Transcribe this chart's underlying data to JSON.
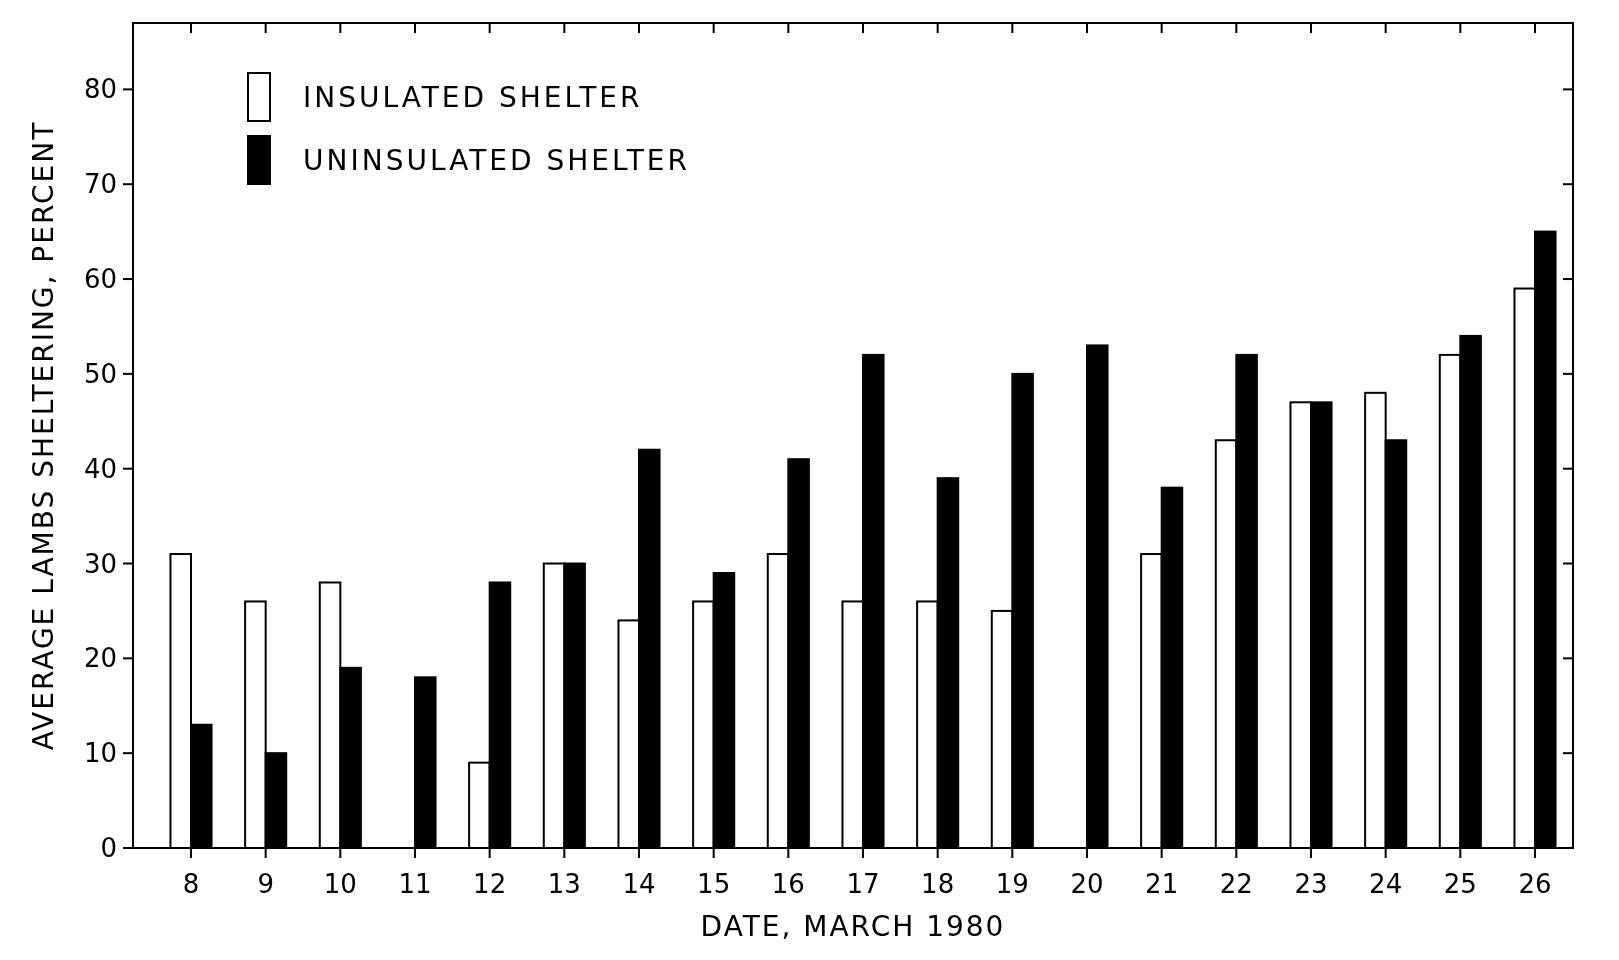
{
  "chart_data": {
    "type": "bar",
    "xlabel": "DATE, MARCH 1980",
    "ylabel": "AVERAGE LAMBS SHELTERING, PERCENT",
    "categories": [
      "8",
      "9",
      "10",
      "11",
      "12",
      "13",
      "14",
      "15",
      "16",
      "17",
      "18",
      "19",
      "20",
      "21",
      "22",
      "23",
      "24",
      "25",
      "26"
    ],
    "series": [
      {
        "name": "INSULATED SHELTER",
        "color": "#ffffff",
        "values": [
          31,
          26,
          28,
          0,
          9,
          30,
          24,
          26,
          31,
          26,
          26,
          25,
          0,
          31,
          43,
          47,
          48,
          52,
          59
        ]
      },
      {
        "name": "UNINSULATED SHELTER",
        "color": "#000000",
        "values": [
          13,
          10,
          19,
          18,
          28,
          30,
          42,
          29,
          41,
          52,
          39,
          50,
          53,
          38,
          52,
          47,
          43,
          54,
          65
        ]
      }
    ],
    "ylim": [
      0,
      87
    ],
    "yticks": [
      0,
      10,
      20,
      30,
      40,
      50,
      60,
      70,
      80
    ],
    "legend": "top left",
    "grid": false
  }
}
